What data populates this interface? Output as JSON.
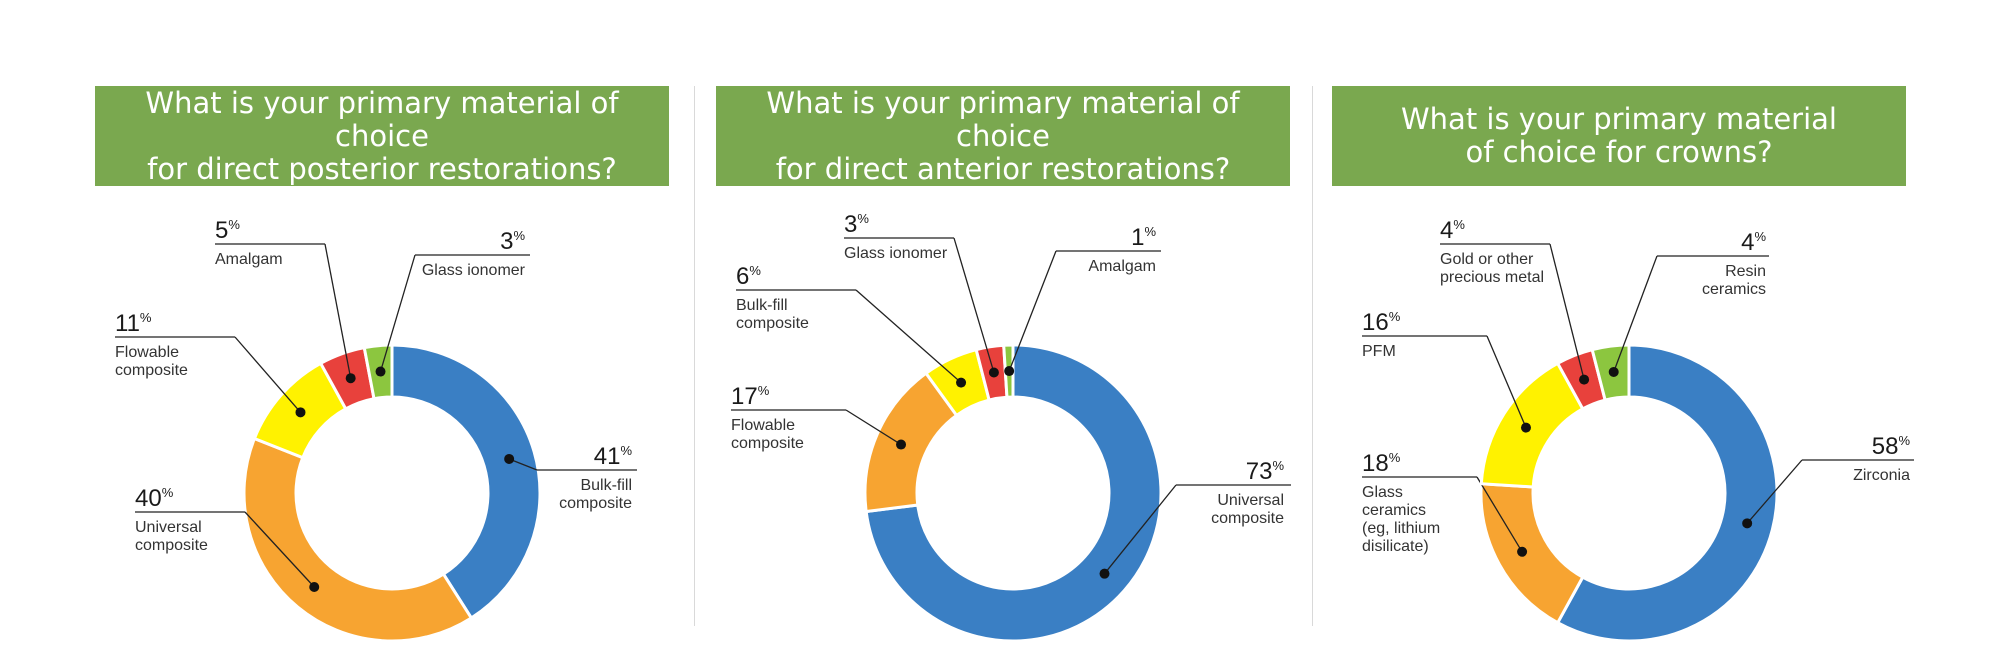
{
  "colors": {
    "banner": "#7aa84f",
    "blue": "#3a7fc4",
    "orange": "#f7a431",
    "yellow": "#fff200",
    "red": "#e8413c",
    "green": "#8cc63f"
  },
  "percent_sign": "%",
  "chart_data": [
    {
      "type": "pie",
      "title": "What is your primary material of choice\nfor direct posterior restorations?",
      "donut": true,
      "slices": [
        {
          "label": "Bulk-fill composite",
          "value": 41,
          "color": "#3a7fc4"
        },
        {
          "label": "Universal composite",
          "value": 40,
          "color": "#f7a431"
        },
        {
          "label": "Flowable composite",
          "value": 11,
          "color": "#fff200"
        },
        {
          "label": "Amalgam",
          "value": 5,
          "color": "#e8413c"
        },
        {
          "label": "Glass ionomer",
          "value": 3,
          "color": "#8cc63f"
        }
      ]
    },
    {
      "type": "pie",
      "title": "What is your primary material of choice\nfor direct anterior restorations?",
      "donut": true,
      "slices": [
        {
          "label": "Universal composite",
          "value": 73,
          "color": "#3a7fc4"
        },
        {
          "label": "Flowable composite",
          "value": 17,
          "color": "#f7a431"
        },
        {
          "label": "Bulk-fill composite",
          "value": 6,
          "color": "#fff200"
        },
        {
          "label": "Glass ionomer",
          "value": 3,
          "color": "#e8413c"
        },
        {
          "label": "Amalgam",
          "value": 1,
          "color": "#8cc63f"
        }
      ]
    },
    {
      "type": "pie",
      "title": "What is your primary material\nof choice for crowns?",
      "donut": true,
      "slices": [
        {
          "label": "Zirconia",
          "value": 58,
          "color": "#3a7fc4"
        },
        {
          "label": "Glass ceramics (eg, lithium disilicate)",
          "value": 18,
          "color": "#f7a431"
        },
        {
          "label": "PFM",
          "value": 16,
          "color": "#fff200"
        },
        {
          "label": "Gold or other precious metal",
          "value": 4,
          "color": "#e8413c"
        },
        {
          "label": "Resin ceramics",
          "value": 4,
          "color": "#8cc63f"
        }
      ]
    }
  ]
}
